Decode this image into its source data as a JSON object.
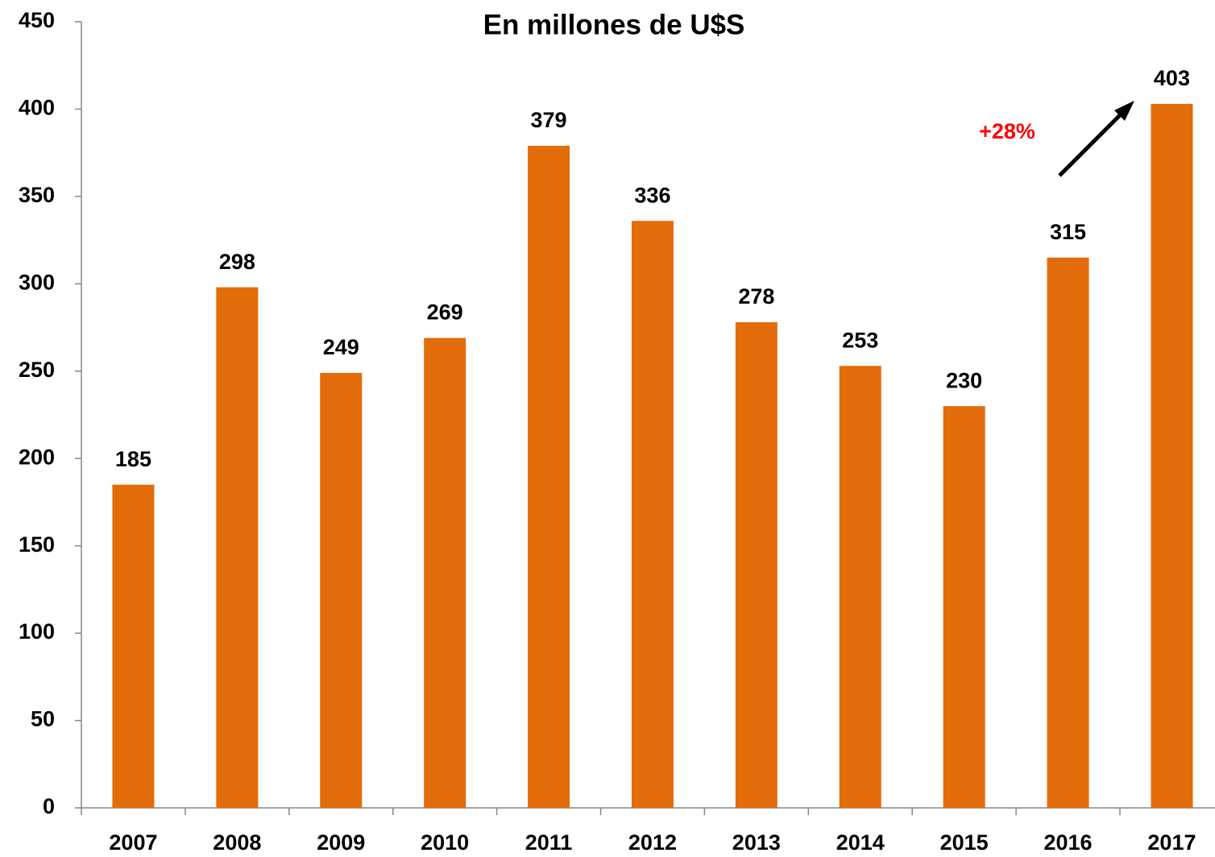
{
  "chart_data": {
    "type": "bar",
    "title": "En millones de U$S",
    "categories": [
      "2007",
      "2008",
      "2009",
      "2010",
      "2011",
      "2012",
      "2013",
      "2014",
      "2015",
      "2016",
      "2017"
    ],
    "values": [
      185,
      298,
      249,
      269,
      379,
      336,
      278,
      253,
      230,
      315,
      403
    ],
    "color": "#e36c0a",
    "ylim": [
      0,
      450
    ],
    "yticks": [
      0,
      50,
      100,
      150,
      200,
      250,
      300,
      350,
      400,
      450
    ],
    "grid": false,
    "annotation": "+28%",
    "annotation_color": "#ff0000"
  }
}
